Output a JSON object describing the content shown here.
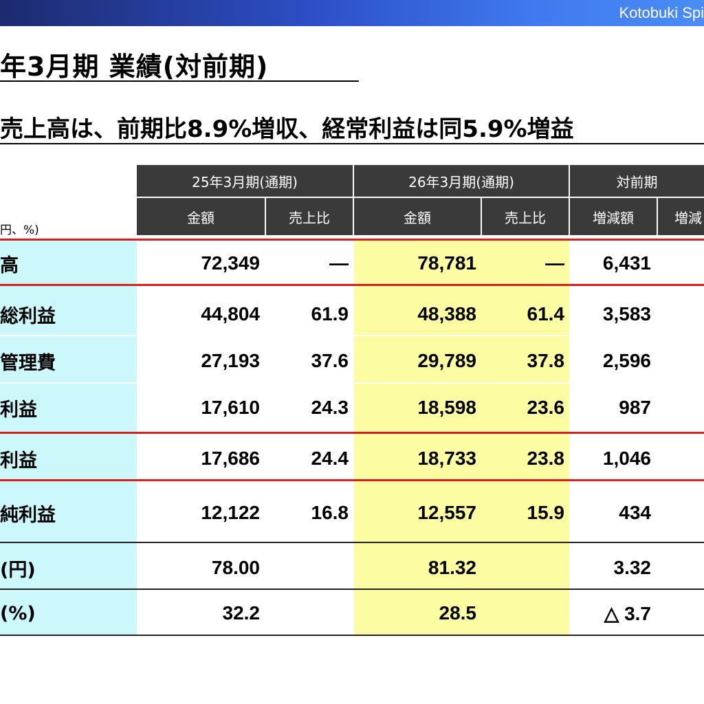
{
  "brand": "Kotobuki Spi",
  "title": "年3月期 業績(対前期)",
  "subtitle": "売上高は、前期比8.9%増収、経常利益は同5.9%増益",
  "unit_note": "円、%)",
  "header": {
    "group_prev": "25年3月期(通期)",
    "group_curr": "26年3月期(通期)",
    "group_yoy": "対前期",
    "amount": "金額",
    "ratio": "売上比",
    "change_amount": "増減額",
    "change_rate": "増減"
  },
  "rows": [
    {
      "label": "高",
      "prev_amount": "72,349",
      "prev_ratio": "―",
      "curr_amount": "78,781",
      "curr_ratio": "―",
      "change": "6,431"
    },
    {
      "label": "総利益",
      "prev_amount": "44,804",
      "prev_ratio": "61.9",
      "curr_amount": "48,388",
      "curr_ratio": "61.4",
      "change": "3,583"
    },
    {
      "label": "管理費",
      "prev_amount": "27,193",
      "prev_ratio": "37.6",
      "curr_amount": "29,789",
      "curr_ratio": "37.8",
      "change": "2,596"
    },
    {
      "label": "利益",
      "prev_amount": "17,610",
      "prev_ratio": "24.3",
      "curr_amount": "18,598",
      "curr_ratio": "23.6",
      "change": "987"
    },
    {
      "label": "利益",
      "prev_amount": "17,686",
      "prev_ratio": "24.4",
      "curr_amount": "18,733",
      "curr_ratio": "23.8",
      "change": "1,046"
    },
    {
      "label": "純利益",
      "prev_amount": "12,122",
      "prev_ratio": "16.8",
      "curr_amount": "12,557",
      "curr_ratio": "15.9",
      "change": "434"
    },
    {
      "label": "(円)",
      "prev_amount": "78.00",
      "prev_ratio": "",
      "curr_amount": "81.32",
      "curr_ratio": "",
      "change": "3.32"
    },
    {
      "label": "(%)",
      "prev_amount": "32.2",
      "prev_ratio": "",
      "curr_amount": "28.5",
      "curr_ratio": "",
      "change": "△ 3.7"
    }
  ],
  "colors": {
    "header_bg": "#3a3a3a",
    "label_bg": "#ccf7fb",
    "current_bg": "#fcfca3",
    "separator": "#d91e1e"
  }
}
